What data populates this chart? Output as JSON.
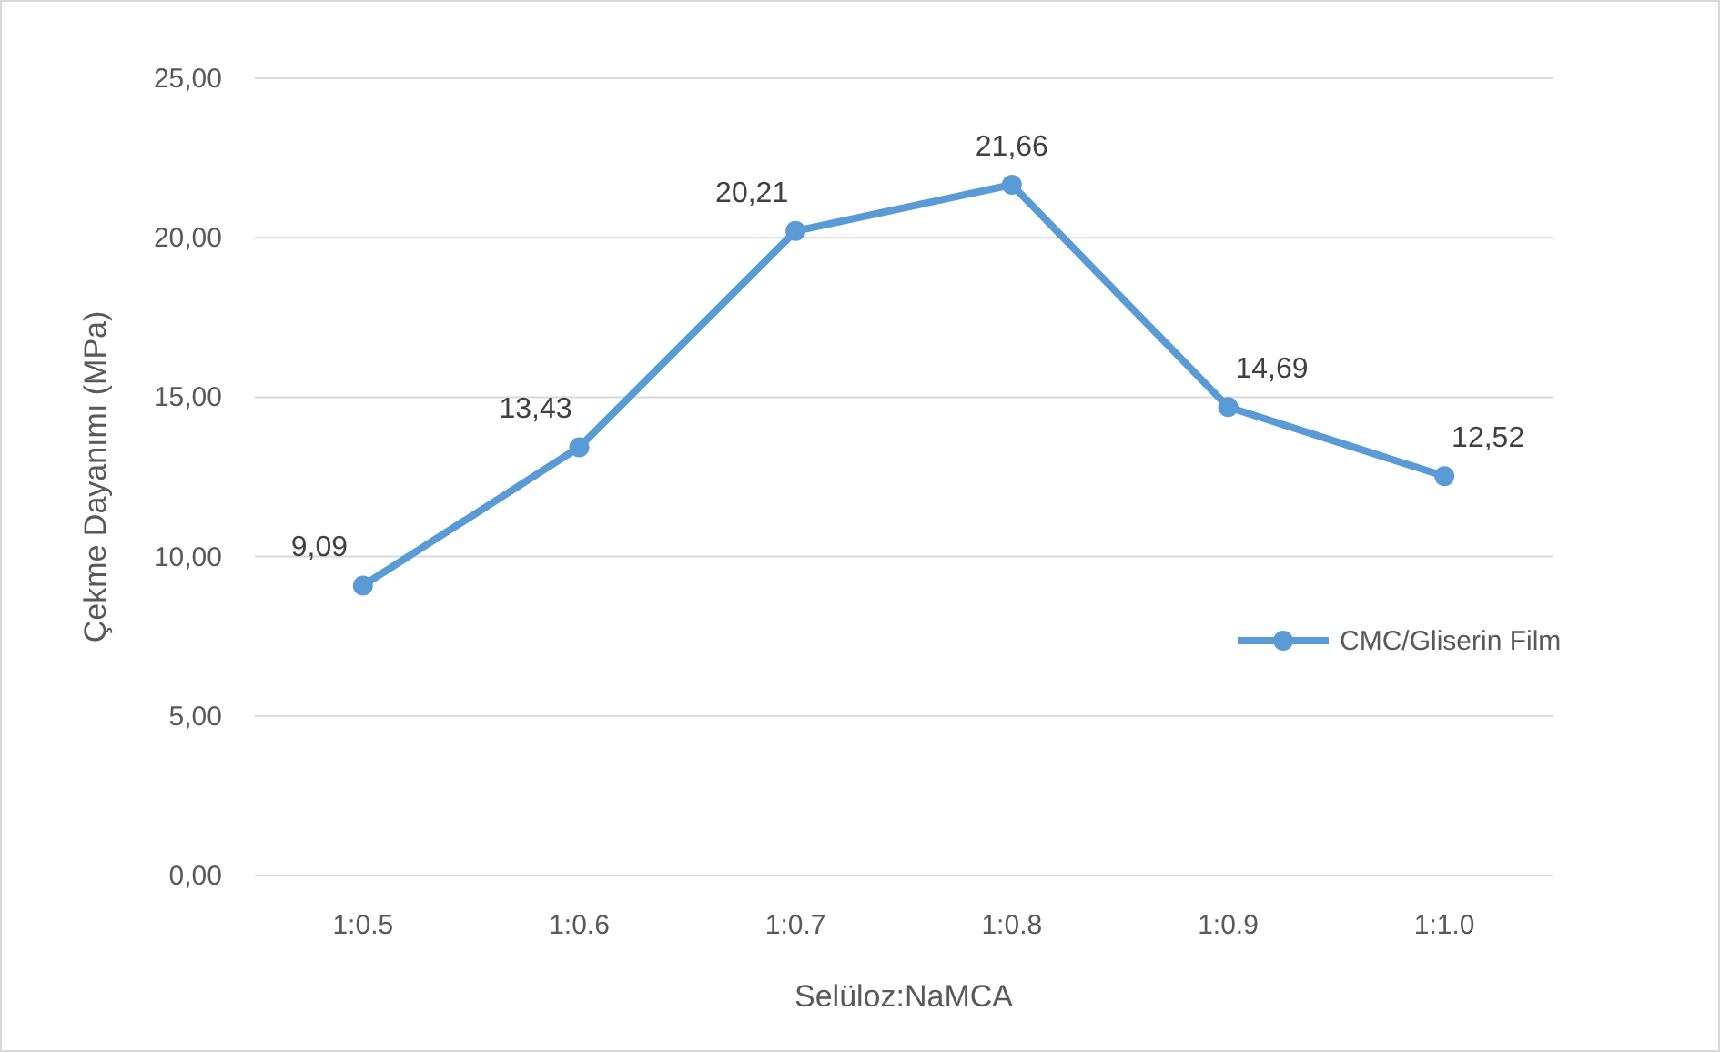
{
  "chart_data": {
    "type": "line",
    "xlabel": "Selüloz:NaMCA",
    "ylabel": "Çekme Dayanımı (MPa)",
    "categories": [
      "1:0.5",
      "1:0.6",
      "1:0.7",
      "1:0.8",
      "1:0.9",
      "1:1.0"
    ],
    "series": [
      {
        "name": "CMC/Gliserin Film",
        "color": "#5b9bd5",
        "values": [
          9.09,
          13.43,
          20.21,
          21.66,
          14.69,
          12.52
        ],
        "value_labels": [
          "9,09",
          "13,43",
          "20,21",
          "21,66",
          "14,69",
          "12,52"
        ]
      }
    ],
    "ylim": [
      0,
      25
    ],
    "yticks": [
      {
        "value": 0,
        "label": "0,00"
      },
      {
        "value": 5,
        "label": "5,00"
      },
      {
        "value": 10,
        "label": "10,00"
      },
      {
        "value": 15,
        "label": "15,00"
      },
      {
        "value": 20,
        "label": "20,00"
      },
      {
        "value": 25,
        "label": "25,00"
      }
    ],
    "grid": "y",
    "legend": "right",
    "marker": "circle",
    "line_style": "solid"
  }
}
